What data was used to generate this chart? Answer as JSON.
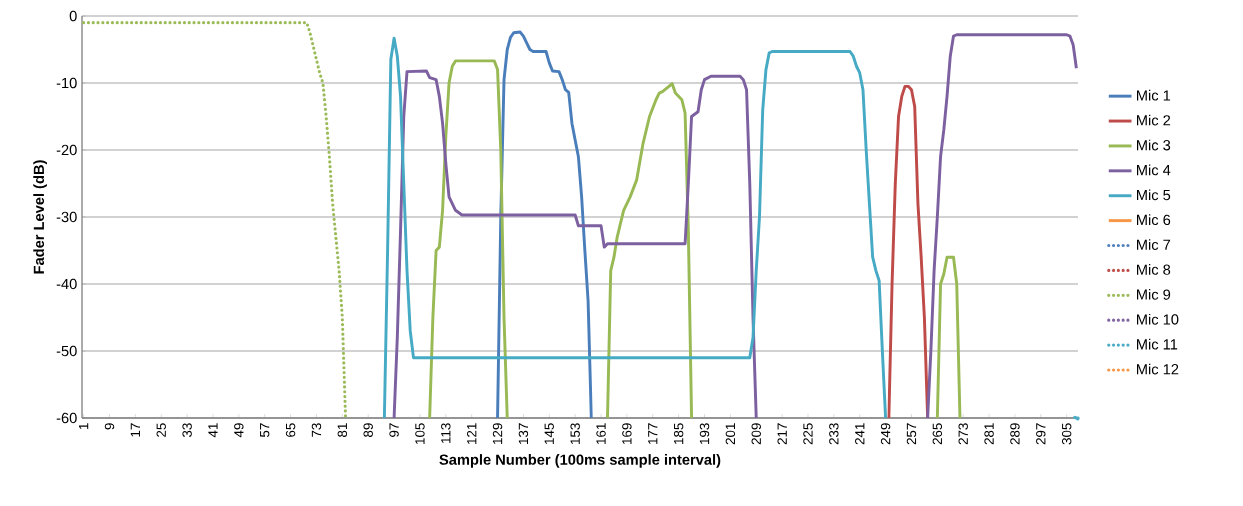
{
  "chart_data": {
    "type": "line",
    "xlabel": "Sample Number (100ms sample interval)",
    "ylabel": "Fader Level (dB)",
    "xlim": [
      0.5,
      308.5
    ],
    "xticks": [
      1,
      9,
      17,
      25,
      33,
      41,
      49,
      57,
      65,
      73,
      81,
      89,
      97,
      105,
      113,
      121,
      129,
      137,
      145,
      153,
      161,
      169,
      177,
      185,
      193,
      201,
      209,
      217,
      225,
      233,
      241,
      249,
      257,
      265,
      273,
      281,
      289,
      297,
      305
    ],
    "ylim": [
      -60,
      0
    ],
    "yticks": [
      -60,
      -50,
      -40,
      -30,
      -20,
      -10,
      0
    ],
    "grid": "y",
    "legend": "right",
    "marker": "none",
    "line_style": "solid",
    "series": [
      {
        "name": "Mic 1",
        "color": "#4a7ebb",
        "x": [
          129,
          130,
          131,
          132,
          133,
          134,
          136,
          137,
          138,
          139,
          140,
          144,
          145,
          146,
          148,
          149,
          150,
          151,
          152,
          153,
          154,
          155,
          156,
          157,
          158
        ],
        "values": [
          -60,
          -30,
          -9.5,
          -5,
          -3.2,
          -2.5,
          -2.4,
          -3,
          -4,
          -5,
          -5.3,
          -5.3,
          -7,
          -8.2,
          -8.3,
          -9.5,
          -11,
          -11.4,
          -16,
          -18.5,
          -21,
          -27,
          -35,
          -42.5,
          -60
        ]
      },
      {
        "name": "Mic 2",
        "color": "#be4b48",
        "x": [
          250,
          251,
          252,
          253,
          254,
          255,
          256,
          257,
          258,
          259,
          260,
          261,
          262
        ],
        "values": [
          -60,
          -40,
          -25,
          -15,
          -12,
          -10.5,
          -10.5,
          -11,
          -13.5,
          -28,
          -36,
          -45,
          -60
        ]
      },
      {
        "name": "Mic 3",
        "color": "#98b954",
        "x": [
          108,
          109,
          110,
          111,
          112,
          113,
          114,
          115,
          116,
          128,
          129,
          130,
          131,
          132,
          148,
          163,
          164,
          165,
          166,
          167,
          168,
          170,
          172,
          174,
          176,
          178,
          179,
          180,
          182,
          183,
          184,
          186,
          187,
          188,
          189,
          230,
          265,
          266,
          267,
          268,
          270,
          271,
          272
        ],
        "values": [
          -60,
          -45,
          -35,
          -34.5,
          -29,
          -18,
          -10,
          -7.5,
          -6.7,
          -6.7,
          -8,
          -20,
          -45,
          -60,
          null,
          -60,
          -38,
          -36,
          -33,
          -31,
          -29,
          -27,
          -24.5,
          -19,
          -15,
          -12.5,
          -11.5,
          -11.3,
          -10.5,
          -10.1,
          -11.5,
          -12.5,
          -14.5,
          -32,
          -60,
          null,
          -60,
          -40,
          -38.5,
          -36,
          -36,
          -40,
          -60
        ]
      },
      {
        "name": "Mic 4",
        "color": "#7d60a0",
        "x": [
          97,
          98,
          99,
          100,
          101,
          107,
          108,
          110,
          111,
          112,
          113,
          114,
          116,
          118,
          153,
          154,
          161,
          162,
          163,
          187,
          188,
          189,
          191,
          192,
          193,
          195,
          204,
          205,
          206,
          207,
          208,
          209,
          230,
          262,
          263,
          264,
          265,
          266,
          267,
          268,
          269,
          270,
          271,
          305,
          306,
          307,
          308
        ],
        "values": [
          -60,
          -48,
          -32,
          -15,
          -8.3,
          -8.2,
          -9.2,
          -9.5,
          -12,
          -16,
          -22,
          -27,
          -29,
          -29.7,
          -29.7,
          -31.3,
          -31.3,
          -34.5,
          -34,
          -34,
          -25,
          -15,
          -14.3,
          -11,
          -9.5,
          -9,
          -9,
          -9.5,
          -11,
          -25,
          -45,
          -60,
          null,
          -60,
          -50,
          -38,
          -30,
          -21,
          -17,
          -12,
          -6,
          -3,
          -2.8,
          -2.8,
          -3,
          -4.3,
          -7.8
        ]
      },
      {
        "name": "Mic 5",
        "color": "#46aac5",
        "x": [
          94,
          95,
          96,
          97,
          98,
          99,
          100,
          101,
          102,
          103,
          207,
          208,
          209,
          210,
          211,
          212,
          213,
          214,
          238,
          239,
          240,
          241,
          242,
          243,
          244,
          245,
          246,
          247,
          248,
          249
        ],
        "values": [
          -60,
          -35,
          -6.5,
          -3.3,
          -6,
          -12,
          -25,
          -38,
          -47,
          -51,
          -51,
          -48,
          -38,
          -30,
          -14,
          -8,
          -5.5,
          -5.3,
          -5.3,
          -6,
          -7.5,
          -8.5,
          -11,
          -20,
          -28,
          -36,
          -38,
          -39.5,
          -50,
          -60
        ]
      },
      {
        "name": "Mic 6",
        "color": "#f79646"
      },
      {
        "name": "Mic 7",
        "color": "#4f81bd",
        "line_style": "dotted"
      },
      {
        "name": "Mic 8",
        "color": "#c0504d",
        "line_style": "dotted"
      },
      {
        "name": "Mic 9",
        "color": "#9bbb59",
        "line_style": "dotted",
        "x": [
          1,
          70,
          71,
          72,
          73,
          74,
          75,
          76,
          77,
          78,
          79,
          80,
          81,
          82
        ],
        "values": [
          -1,
          -1,
          -2.5,
          -4.5,
          -6.5,
          -8.5,
          -10,
          -15,
          -21,
          -28,
          -33,
          -38,
          -45,
          -60
        ]
      },
      {
        "name": "Mic 10",
        "color": "#8064a2",
        "line_style": "dotted"
      },
      {
        "name": "Mic 11",
        "color": "#4bacc6",
        "line_style": "dotted",
        "marker": "circle",
        "x": [
          308
        ],
        "values": [
          -60
        ]
      },
      {
        "name": "Mic 12",
        "color": "#f79646",
        "line_style": "dotted"
      }
    ]
  }
}
